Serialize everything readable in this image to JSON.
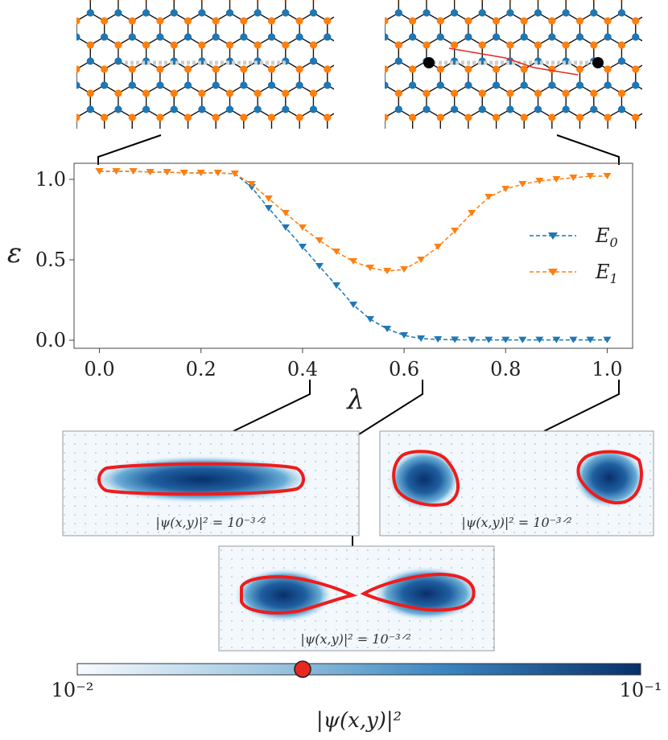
{
  "chart_data": {
    "type": "line",
    "xlabel": "λ",
    "ylabel": "ε",
    "xlim": [
      -0.05,
      1.05
    ],
    "ylim": [
      -0.05,
      1.1
    ],
    "xticks": [
      "0.0",
      "0.2",
      "0.4",
      "0.6",
      "0.8",
      "1.0"
    ],
    "yticks": [
      "0.0",
      "0.5",
      "1.0"
    ],
    "legend_position": "right",
    "x": [
      0.0,
      0.0333,
      0.0667,
      0.1,
      0.1333,
      0.1667,
      0.2,
      0.2333,
      0.2667,
      0.3,
      0.3333,
      0.3667,
      0.4,
      0.4333,
      0.4667,
      0.5,
      0.5333,
      0.5667,
      0.6,
      0.6333,
      0.6667,
      0.7,
      0.7333,
      0.7667,
      0.8,
      0.8333,
      0.8667,
      0.9,
      0.9333,
      0.9667,
      1.0
    ],
    "series": [
      {
        "name": "E_0",
        "label_main": "E",
        "label_sub": "0",
        "color": "#1f77b4",
        "values": [
          1.05,
          1.05,
          1.05,
          1.045,
          1.045,
          1.04,
          1.04,
          1.04,
          1.035,
          0.95,
          0.82,
          0.7,
          0.58,
          0.46,
          0.34,
          0.22,
          0.13,
          0.07,
          0.03,
          0.01,
          0.005,
          0.003,
          0.002,
          0.002,
          0.002,
          0.002,
          0.002,
          0.002,
          0.002,
          0.002,
          0.002
        ]
      },
      {
        "name": "E_1",
        "label_main": "E",
        "label_sub": "1",
        "color": "#ff7f0e",
        "values": [
          1.05,
          1.05,
          1.05,
          1.045,
          1.045,
          1.04,
          1.04,
          1.04,
          1.035,
          0.97,
          0.88,
          0.79,
          0.7,
          0.62,
          0.55,
          0.49,
          0.45,
          0.43,
          0.44,
          0.5,
          0.58,
          0.68,
          0.79,
          0.89,
          0.94,
          0.97,
          0.99,
          1.0,
          1.01,
          1.02,
          1.02
        ]
      }
    ]
  },
  "panels": {
    "left": {
      "label": "|ψ(x,y)|² = 10⁻³ᐟ²"
    },
    "middle": {
      "label": "|ψ(x,y)|² = 10⁻³ᐟ²"
    },
    "right": {
      "label": "|ψ(x,y)|² = 10⁻³ᐟ²"
    }
  },
  "colorbar": {
    "min_label": "10⁻²",
    "max_label": "10⁻¹",
    "label": "|ψ(x,y)|²",
    "marker_fraction": 0.4,
    "color_low": "#f5f9fe",
    "color_high": "#08306b",
    "marker_color": "#e8281f"
  }
}
